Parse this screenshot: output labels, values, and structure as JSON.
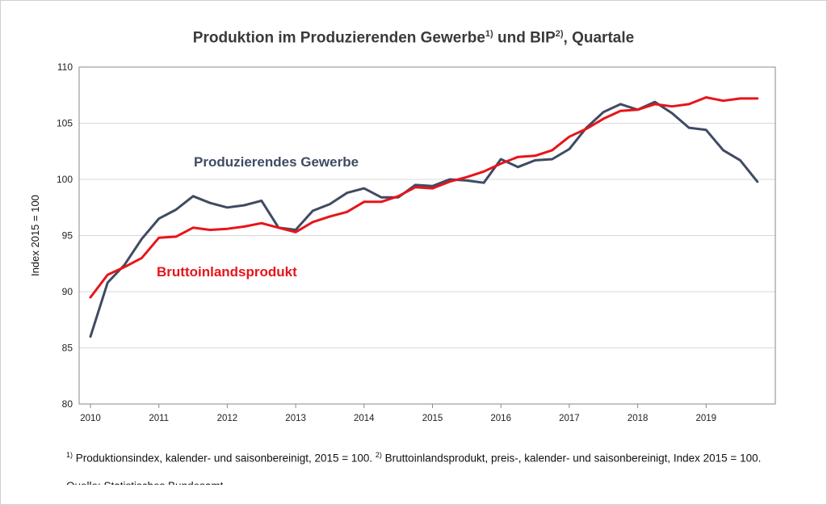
{
  "chart_data": {
    "type": "line",
    "title": "Produktion im Produzierenden Gewerbe",
    "title_sup1": "1)",
    "title_mid": " und BIP",
    "title_sup2": "2)",
    "title_end": ", Quartale",
    "ylabel": "Index 2015 = 100",
    "ylim": [
      80,
      110
    ],
    "yticks": [
      80,
      85,
      90,
      95,
      100,
      105,
      110
    ],
    "xlim": [
      2010,
      2020
    ],
    "year_labels": [
      "2010",
      "2011",
      "2012",
      "2013",
      "2014",
      "2015",
      "2016",
      "2017",
      "2018",
      "2019"
    ],
    "grid": true,
    "series": [
      {
        "name": "Produzierendes Gewerbe",
        "color": "#3f4b63",
        "values": [
          86.0,
          90.8,
          92.4,
          94.7,
          96.5,
          97.3,
          98.5,
          97.9,
          97.5,
          97.7,
          98.1,
          95.7,
          95.5,
          97.2,
          97.8,
          98.8,
          99.2,
          98.4,
          98.4,
          99.5,
          99.4,
          100.0,
          99.9,
          99.7,
          101.8,
          101.1,
          101.7,
          101.8,
          102.7,
          104.6,
          106.0,
          106.7,
          106.2,
          106.9,
          105.9,
          104.6,
          104.4,
          102.6,
          101.7,
          99.8
        ]
      },
      {
        "name": "Bruttoinlandsprodukt",
        "color": "#e8141a",
        "values": [
          89.5,
          91.5,
          92.2,
          93.0,
          94.8,
          94.9,
          95.7,
          95.5,
          95.6,
          95.8,
          96.1,
          95.7,
          95.3,
          96.2,
          96.7,
          97.1,
          98.0,
          98.0,
          98.5,
          99.3,
          99.2,
          99.8,
          100.2,
          100.7,
          101.4,
          102.0,
          102.1,
          102.6,
          103.8,
          104.5,
          105.4,
          106.1,
          106.2,
          106.7,
          106.5,
          106.7,
          107.3,
          107.0,
          107.2,
          107.2
        ]
      }
    ],
    "annotations": [
      {
        "text": "Produzierendes Gewerbe",
        "color": "#3f4b63"
      },
      {
        "text": "Bruttoinlandsprodukt",
        "color": "#e8141a"
      }
    ]
  },
  "footnote": {
    "sup1": "1)",
    "text1": " Produktionsindex, kalender- und saisonbereinigt, 2015 = 100. ",
    "sup2": "2)",
    "text2": " Bruttoinlandsprodukt, preis-, kalender- und saisonbereinigt, Index 2015 = 100."
  },
  "source": "Quelle: Statistisches Bundesamt"
}
